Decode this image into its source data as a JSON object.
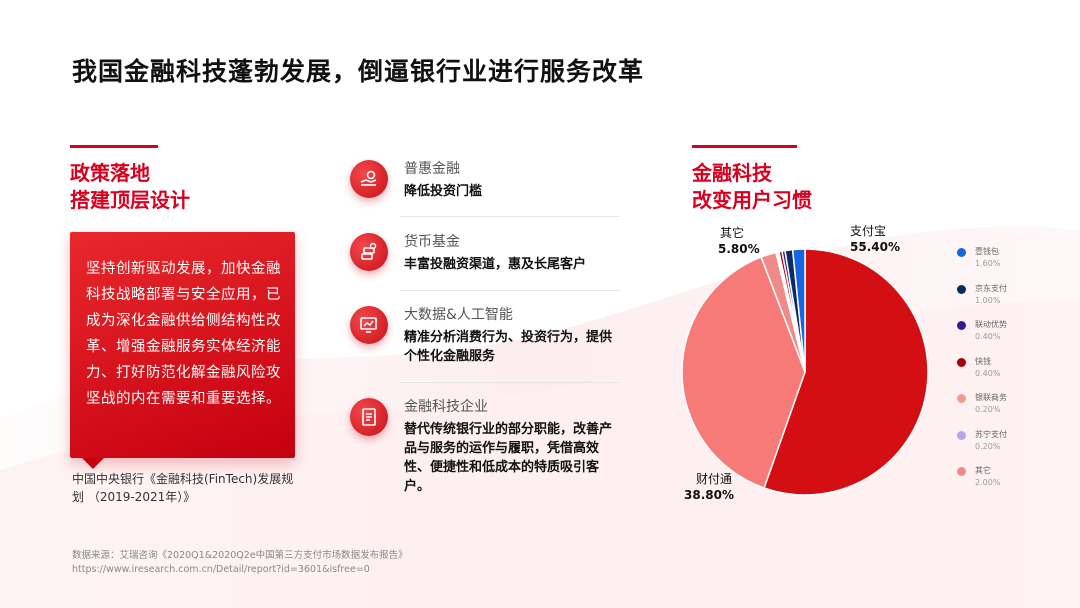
{
  "title": "我国金融科技蓬勃发展，倒逼银行业进行服务改革",
  "policy": {
    "heading_line1": "政策落地",
    "heading_line2": "搭建顶层设计",
    "body": "坚持创新驱动发展，加快金融科技战略部署与安全应用，已成为深化金融供给侧结构性改革、增强金融服务实体经济能力、打好防范化解金融风险攻坚战的内在需要和重要选择。",
    "source": "中国中央银行《金融科技(FinTech)发展规划 （2019-2021年）》"
  },
  "features": [
    {
      "name": "普惠金融",
      "desc": "降低投资门槛",
      "icon": "handshake-coin-icon"
    },
    {
      "name": "货币基金",
      "desc": "丰富投融资渠道，惠及长尾客户",
      "icon": "coin-stack-icon"
    },
    {
      "name": "大数据&人工智能",
      "desc": "精准分析消费行为、投资行为，提供个性化金融服务",
      "icon": "data-screen-icon"
    },
    {
      "name": "金融科技企业",
      "desc": "替代传统银行业的部分职能，改善产品与服务的运作与履职，凭借高效性、便捷性和低成本的特质吸引客户。",
      "icon": "document-icon"
    }
  ],
  "fintech": {
    "heading_line1": "金融科技",
    "heading_line2": "改变用户习惯"
  },
  "chart_data": {
    "type": "pie",
    "title": "",
    "series": [
      {
        "name": "支付宝",
        "value": 55.4,
        "label": "55.40%",
        "color": "#d40f14"
      },
      {
        "name": "财付通",
        "value": 38.8,
        "label": "38.80%",
        "color": "#f57a78"
      },
      {
        "name": "壹钱包",
        "value": 1.6,
        "label": "1.60%",
        "color": "#1565e0"
      },
      {
        "name": "京东支付",
        "value": 1.0,
        "label": "1.00%",
        "color": "#0b2a66"
      },
      {
        "name": "联动优势",
        "value": 0.4,
        "label": "0.40%",
        "color": "#3a1a8a"
      },
      {
        "name": "快钱",
        "value": 0.4,
        "label": "0.40%",
        "color": "#a8000b"
      },
      {
        "name": "银联商务",
        "value": 0.2,
        "label": "0.20%",
        "color": "#f49a90"
      },
      {
        "name": "苏宁支付",
        "value": 0.2,
        "label": "0.20%",
        "color": "#b7a2ee"
      },
      {
        "name": "其它",
        "value": 2.0,
        "label": "2.00%",
        "color": "#f08a88"
      }
    ],
    "callouts": [
      {
        "name": "支付宝",
        "value": "55.40%"
      },
      {
        "name": "财付通",
        "value": "38.80%"
      },
      {
        "name": "其它",
        "value": "5.80%"
      }
    ],
    "legend_position": "right"
  },
  "footer": {
    "line1": "数据来源：艾瑞咨询《2020Q1&2020Q2e中国第三方支付市场数据发布报告》",
    "line2": "https://www.iresearch.com.cn/Detail/report?id=3601&isfree=0"
  }
}
